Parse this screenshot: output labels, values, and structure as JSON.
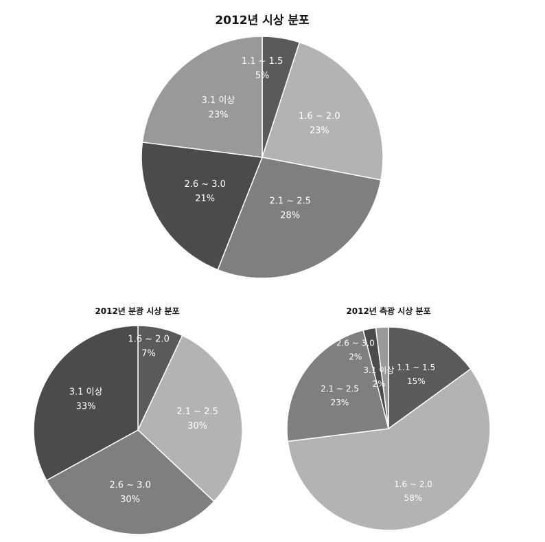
{
  "chart_data": [
    {
      "type": "pie",
      "title": "2012년 시상 분포",
      "slices": [
        {
          "category": "1.1 ~ 1.5",
          "value": 5,
          "value_label": "5%",
          "color": "#5a5a5a"
        },
        {
          "category": "1.6 ~ 2.0",
          "value": 23,
          "value_label": "23%",
          "color": "#b3b3b3"
        },
        {
          "category": "2.1 ~ 2.5",
          "value": 28,
          "value_label": "28%",
          "color": "#7f7f7f"
        },
        {
          "category": "2.6 ~ 3.0",
          "value": 21,
          "value_label": "21%",
          "color": "#4b4b4b"
        },
        {
          "category": "3.1 이상",
          "value": 23,
          "value_label": "23%",
          "color": "#999999"
        }
      ]
    },
    {
      "type": "pie",
      "title": "2012년 분광 시상 분포",
      "slices": [
        {
          "category": "1.6 ~ 2.0",
          "value": 7,
          "value_label": "7%",
          "color": "#5a5a5a"
        },
        {
          "category": "2.1 ~ 2.5",
          "value": 30,
          "value_label": "30%",
          "color": "#b3b3b3"
        },
        {
          "category": "2.6 ~ 3.0",
          "value": 30,
          "value_label": "30%",
          "color": "#7f7f7f"
        },
        {
          "category": "3.1 이상",
          "value": 33,
          "value_label": "33%",
          "color": "#4b4b4b"
        }
      ]
    },
    {
      "type": "pie",
      "title": "2012년 측광 시상 분포",
      "slices": [
        {
          "category": "1.1 ~ 1.5",
          "value": 15,
          "value_label": "15%",
          "color": "#5a5a5a"
        },
        {
          "category": "1.6 ~ 2.0",
          "value": 58,
          "value_label": "58%",
          "color": "#b3b3b3"
        },
        {
          "category": "2.1 ~ 2.5",
          "value": 23,
          "value_label": "23%",
          "color": "#7f7f7f"
        },
        {
          "category": "2.6 ~ 3.0",
          "value": 2,
          "value_label": "2%",
          "color": "#4b4b4b"
        },
        {
          "category": "3.1 이상",
          "value": 2,
          "value_label": "2%",
          "color": "#999999"
        }
      ]
    }
  ]
}
